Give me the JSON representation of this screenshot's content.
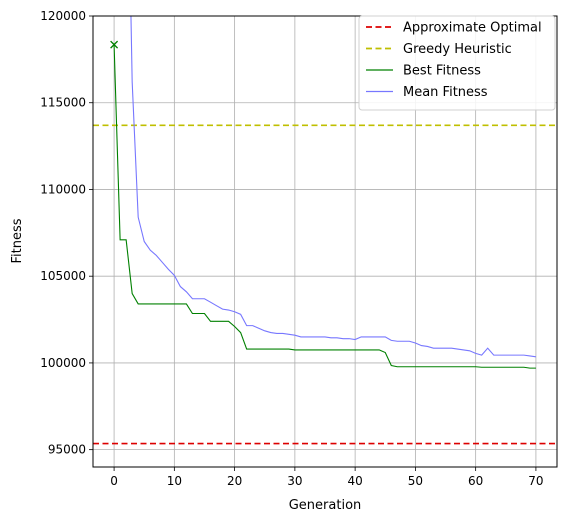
{
  "chart_data": {
    "type": "line",
    "title": "",
    "xlabel": "Generation",
    "ylabel": "Fitness",
    "xlim": [
      -3.5,
      73.5
    ],
    "ylim": [
      94000,
      120000
    ],
    "xticks": [
      0,
      10,
      20,
      30,
      40,
      50,
      60,
      70
    ],
    "yticks": [
      95000,
      100000,
      105000,
      110000,
      115000,
      120000
    ],
    "grid": true,
    "legend_position": "top-right",
    "reference_lines": [
      {
        "name": "Approximate Optimal",
        "value": 95350,
        "color": "#dd0000",
        "style": "dashed"
      },
      {
        "name": "Greedy Heuristic",
        "value": 113700,
        "color": "#bfbf00",
        "style": "dashed"
      }
    ],
    "series": [
      {
        "name": "Best Fitness",
        "color": "#008000",
        "marker_first": "x",
        "x": [
          0,
          1,
          2,
          3,
          4,
          5,
          6,
          7,
          8,
          9,
          10,
          11,
          12,
          13,
          14,
          15,
          16,
          17,
          18,
          19,
          20,
          21,
          22,
          23,
          24,
          25,
          26,
          27,
          28,
          29,
          30,
          31,
          32,
          33,
          34,
          35,
          36,
          37,
          38,
          39,
          40,
          41,
          42,
          43,
          44,
          45,
          46,
          47,
          48,
          49,
          50,
          51,
          52,
          53,
          54,
          55,
          56,
          57,
          58,
          59,
          60,
          61,
          62,
          63,
          64,
          65,
          66,
          67,
          68,
          69,
          70
        ],
        "y": [
          118350,
          107100,
          107100,
          104000,
          103400,
          103400,
          103400,
          103400,
          103400,
          103400,
          103400,
          103400,
          103400,
          102850,
          102850,
          102850,
          102400,
          102400,
          102400,
          102400,
          102100,
          101750,
          100800,
          100800,
          100800,
          100800,
          100800,
          100800,
          100800,
          100800,
          100750,
          100750,
          100750,
          100750,
          100750,
          100750,
          100750,
          100750,
          100750,
          100750,
          100750,
          100750,
          100750,
          100750,
          100750,
          100600,
          99850,
          99780,
          99780,
          99780,
          99780,
          99780,
          99780,
          99780,
          99780,
          99780,
          99780,
          99780,
          99780,
          99780,
          99780,
          99750,
          99750,
          99750,
          99750,
          99750,
          99750,
          99750,
          99750,
          99700,
          99700
        ]
      },
      {
        "name": "Mean Fitness",
        "color": "#7777ff",
        "x": [
          2.8,
          3,
          4,
          5,
          6,
          7,
          8,
          9,
          10,
          11,
          12,
          13,
          14,
          15,
          16,
          17,
          18,
          19,
          20,
          21,
          22,
          23,
          24,
          25,
          26,
          27,
          28,
          29,
          30,
          31,
          32,
          33,
          34,
          35,
          36,
          37,
          38,
          39,
          40,
          41,
          42,
          43,
          44,
          45,
          46,
          47,
          48,
          49,
          50,
          51,
          52,
          53,
          54,
          55,
          56,
          57,
          58,
          59,
          60,
          61,
          62,
          63,
          64,
          65,
          66,
          67,
          68,
          69,
          70
        ],
        "y": [
          120000,
          116200,
          108400,
          107000,
          106500,
          106200,
          105800,
          105400,
          105050,
          104400,
          104100,
          103700,
          103700,
          103700,
          103500,
          103300,
          103100,
          103050,
          102950,
          102800,
          102150,
          102150,
          102000,
          101850,
          101750,
          101700,
          101700,
          101650,
          101600,
          101500,
          101500,
          101500,
          101500,
          101500,
          101450,
          101450,
          101400,
          101400,
          101350,
          101500,
          101500,
          101500,
          101500,
          101500,
          101300,
          101250,
          101250,
          101250,
          101150,
          101000,
          100950,
          100850,
          100850,
          100850,
          100850,
          100800,
          100750,
          100700,
          100550,
          100450,
          100850,
          100450,
          100450,
          100450,
          100450,
          100450,
          100450,
          100400,
          100350
        ]
      }
    ]
  }
}
